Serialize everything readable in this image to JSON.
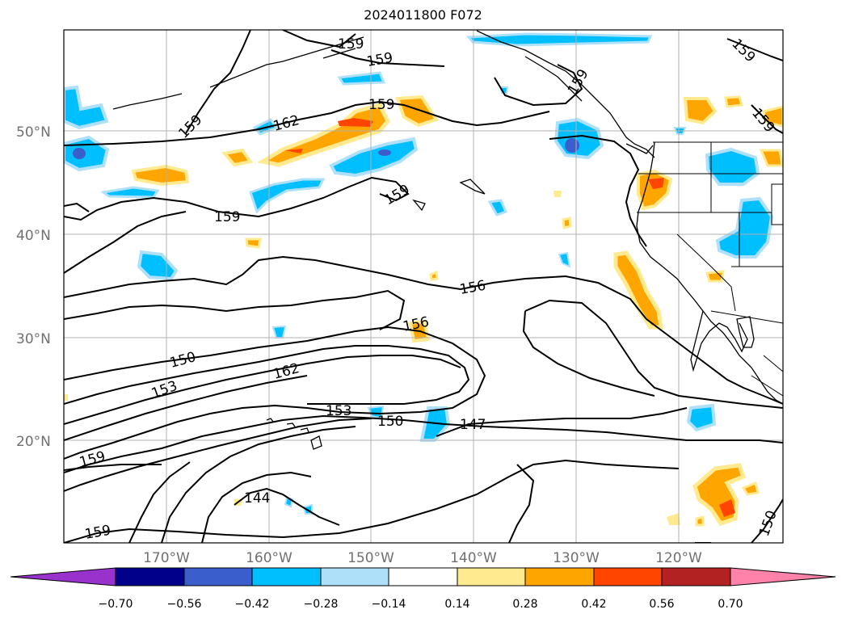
{
  "title": "2024011800 F072",
  "map": {
    "latitude_labels": [
      "50°N",
      "40°N",
      "30°N",
      "20°N"
    ],
    "longitude_labels": [
      "170°W",
      "160°W",
      "150°W",
      "140°W",
      "130°W",
      "120°W"
    ],
    "contour_labels": [
      "159",
      "159",
      "159",
      "159",
      "162",
      "159",
      "159",
      "159",
      "159",
      "156",
      "156",
      "150",
      "162",
      "153",
      "153",
      "150",
      "147",
      "159",
      "144",
      "159",
      "150"
    ]
  },
  "colorbar": {
    "tick_labels": [
      "−0.70",
      "−0.56",
      "−0.42",
      "−0.28",
      "−0.14",
      "0.14",
      "0.28",
      "0.42",
      "0.56",
      "0.70"
    ],
    "colors": [
      "#9932cc",
      "#00008b",
      "#3a5fcd",
      "#00bfff",
      "#afe0fa",
      "#ffffff",
      "#ffea8f",
      "#ffa500",
      "#ff4500",
      "#b22222",
      "#ff82ab"
    ]
  }
}
